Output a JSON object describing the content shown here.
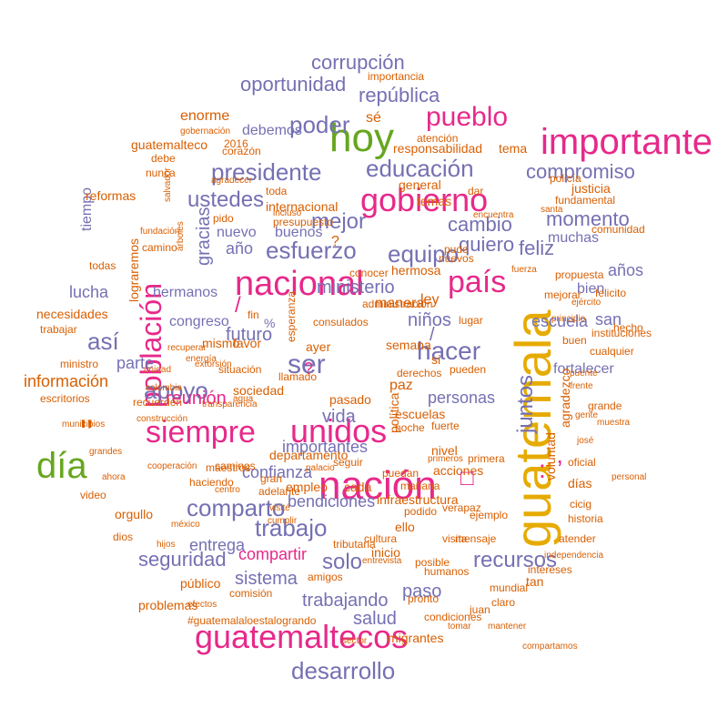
{
  "colors": {
    "orange": "#d95f02",
    "purple": "#7570b3",
    "magenta": "#e7298a",
    "green": "#66a61e",
    "teal": "#1b9e77",
    "gold": "#e6ab02"
  },
  "words": {
    "guatemala": "guatemala",
    "nacion": "nación",
    "hoy": "hoy",
    "importante": "importante",
    "nacional": "nacional",
    "gobierno": "gobierno",
    "pais": "país",
    "unidos": "unidos",
    "siempre": "siempre",
    "guatemaltecos": "guatemaltecos",
    "dia": "día",
    "poblacion": "población",
    "apoyo": "apoyo",
    "presidente": "presidente",
    "educacion": "educación",
    "pueblo": "pueblo",
    "poder": "poder",
    "republica": "república",
    "corrupcion": "corrupción",
    "oportunidad": "oportunidad",
    "desarrollo": "desarrollo",
    "trabajo": "trabajo",
    "comparto": "comparto",
    "esfuerzo": "esfuerzo",
    "equipo": "equipo",
    "ser": "ser",
    "hacer": "hacer",
    "asi": "así",
    "mejor": "mejor",
    "ustedes": "ustedes",
    "compromiso": "compromiso",
    "momento": "momento",
    "quiero": "quiero",
    "feliz": "feliz",
    "cambio": "cambio",
    "recursos": "recursos",
    "seguridad": "seguridad",
    "sistema": "sistema",
    "juntos": "juntos",
    "solo": "solo",
    "vida": "vida",
    "personas": "personas",
    "ministerio": "ministerio",
    "futuro": "futuro",
    "ninos": "niños",
    "importantes": "importantes",
    "gracias": "gracias",
    "educacion2": "educación",
    "trabajando": "trabajando",
    "paso": "paso",
    "salud": "salud",
    "bendiciones": "bendiciones",
    "confianza": "confianza",
    "entrega": "entrega",
    "compartir": "compartir",
    "reunion": "reunión",
    "informacion": "información",
    "lucha": "lucha",
    "escuela": "escuela",
    "san": "san",
    "anos": "años",
    "muchas": "muchas",
    "bien": "bien",
    "fortalecer": "fortalecer",
    "hermanos": "hermanos",
    "congreso": "congreso",
    "parte": "parte",
    "ano": "año",
    "nuevo": "nuevo",
    "buenos": "buenos",
    "debemos": "debemos",
    "enorme": "enorme",
    "se": "sé",
    "atencion": "atención",
    "responsabilidad": "responsabilidad",
    "tema": "tema",
    "justicia": "justicia",
    "temas": "temas",
    "general": "general",
    "internacional": "internacional",
    "toda": "toda",
    "corazon": "corazón",
    "sociedad": "sociedad",
    "departamento": "departamento",
    "pasado": "pasado",
    "cada": "cada",
    "ley": "ley",
    "paz": "paz",
    "semana": "semana",
    "pueden": "pueden",
    "si": "si",
    "lugar": "lugar",
    "manera": "manera",
    "administracion": "administración",
    "tiempo": "tiempo",
    "reformas": "reformas",
    "todas": "todas",
    "necesidades": "necesidades",
    "trabajar": "trabajar",
    "ministro": "ministro",
    "problemas": "problemas",
    "publico": "público",
    "orgullo": "orgullo",
    "dios": "dios",
    "video": "video",
    "hashtag": "#guatemalaloestalogrando",
    "migrantes": "migrantes",
    "condiciones": "condiciones",
    "juan": "juan",
    "tan": "tan",
    "atender": "atender",
    "historia": "historia",
    "dias": "días",
    "oficial": "oficial",
    "grande": "grande",
    "voluntad": "voluntad",
    "agradezco": "agradezco",
    "cualquier": "cualquier",
    "mensaje": "mensaje",
    "pronto": "pronto",
    "posible": "posible",
    "inicio": "inicio",
    "visita": "visita",
    "podido": "podido",
    "ello": "ello",
    "ejemplo": "ejemplo",
    "cultura": "cultura",
    "maestros": "maestros",
    "haciendo": "haciendo",
    "gran": "gran",
    "comision": "comisión",
    "amigos": "amigos",
    "empleo": "empleo",
    "infraestructura": "infraestructura",
    "nivel": "nivel",
    "acciones": "acciones",
    "puedan": "puedan",
    "escuelas": "escuelas",
    "frutos": "frutos",
    "derechos": "derechos",
    "politica": "política",
    "mismo": "mismo",
    "favor": "favor",
    "situacion": "situación",
    "ayer": "ayer",
    "llamado": "llamado",
    "buen": "buen",
    "guatemalteco": "guatemalteco",
    "debe": "debe",
    "nunca": "nunca",
    "instituciones": "instituciones",
    "hecho": "hecho",
    "importancia": "importancia",
    "fundamental": "fundamental",
    "policia": "policía",
    "comunidad": "comunidad",
    "hermosa": "hermosa",
    "conocer": "conocer",
    "nuevos": "nuevos",
    "propuesta": "propuesta",
    "mejorar": "mejorar",
    "presupuesto": "presupuesto",
    "incluso": "incluso",
    "pido": "pido",
    "camino": "camino",
    "2016": "2016",
    "fin": "fin",
    "dar": "dar",
    "pude": "pude",
    "encuentra": "encuentra",
    "consulados": "consulados",
    "primera": "primera",
    "fuerte": "fuerte",
    "noche": "noche",
    "mision": "misión",
    "tributaria": "tributaria",
    "verapaz": "verapaz",
    "conjunto": "conjunto",
    "intereses": "intereses",
    "claro": "claro",
    "mundial": "mundial",
    "jose": "josé",
    "cicig": "cicig",
    "recuperar": "recuperar",
    "recuerden": "recuerden",
    "energia": "energía",
    "agua": "agua",
    "construccion": "construcción",
    "transparencia": "transparencia",
    "cooperacion": "cooperación",
    "centro": "centro",
    "adelante": "adelante",
    "manana": "mañana",
    "seguir": "seguir",
    "humanos": "humanos",
    "independencia": "independencia",
    "mantener": "mantener",
    "sector": "sector",
    "tomar": "tomar",
    "caminos": "caminos",
    "hijos": "hijos",
    "mexico": "méxico",
    "esperanza": "esperanza",
    "cumplir": "cumplir",
    "municipios": "municipios",
    "efectos": "efectos",
    "compartamos": "compartamos",
    "felicito": "felicito",
    "muestra": "muestra",
    "gente": "gente",
    "puente": "puente",
    "escritorios": "escritorios",
    "colombia": "colombia",
    "grandes": "grandes",
    "ahora": "ahora",
    "unidad": "unidad",
    "agradecer": "agradecer",
    "gobernacion": "gobernación",
    "extorsion": "extorsión",
    "fundacion": "fundación",
    "fuerza": "fuerza",
    "ejercito": "ejército",
    "principio": "principio",
    "personal": "personal",
    "frente": "frente",
    "santa": "santa",
    "linea": "linea",
    "lograremos": "lograremos",
    "salvador": "salvador",
    "arboles": "árboles",
    "palacio": "palacio",
    "visite": "visité",
    "primeros": "primeros",
    "entrevista": "entrevista",
    "urgente": "urgente"
  }
}
